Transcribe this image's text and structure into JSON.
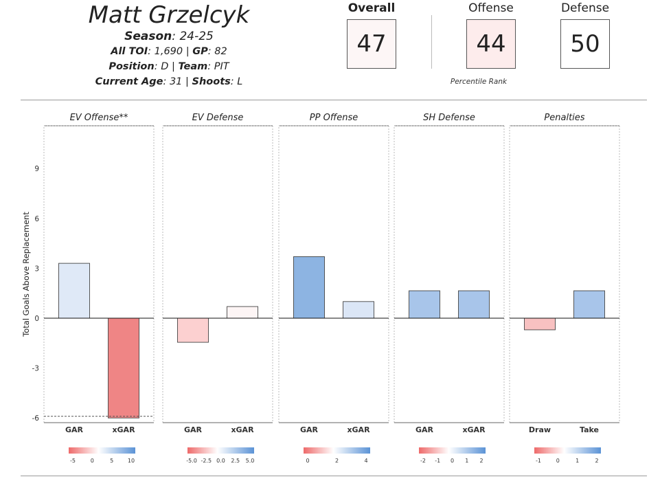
{
  "player": {
    "name": "Matt Grzelcyk",
    "season_label": "Season",
    "season": "24-25",
    "toi_label": "All TOI",
    "toi": "1,690",
    "gp_label": "GP",
    "gp": "82",
    "position_label": "Position",
    "position": "D",
    "team_label": "Team",
    "team": "PIT",
    "age_label": "Current Age",
    "age": "31",
    "shoots_label": "Shoots",
    "shoots": "L"
  },
  "ratings": {
    "overall_label": "Overall",
    "overall": "47",
    "offense_label": "Offense",
    "offense": "44",
    "defense_label": "Defense",
    "defense": "50",
    "percentile_label": "Percentile Rank",
    "colors": {
      "overall_box": "#fdf6f6",
      "offense_box": "#fdecec",
      "defense_box": "#ffffff"
    }
  },
  "chart_data": {
    "type": "bar",
    "ylabel": "Total Goals Above Replacement",
    "ylim": [
      -6.2,
      11.7
    ],
    "yticks": [
      -6,
      -3,
      0,
      3,
      6,
      9
    ],
    "grid": false,
    "panels": [
      {
        "title": "EV Offense**",
        "categories": [
          "GAR",
          "xGAR"
        ],
        "values": [
          3.3,
          -6.0
        ],
        "colors": [
          "#dfe9f7",
          "#ef8585"
        ],
        "colorbar_ticks": [
          "-5",
          "0",
          "5",
          "10"
        ],
        "floor_line": -5.9
      },
      {
        "title": "EV Defense",
        "categories": [
          "GAR",
          "xGAR"
        ],
        "values": [
          -1.45,
          0.7
        ],
        "colors": [
          "#fcd0d0",
          "#fdf5f5"
        ],
        "colorbar_ticks": [
          "-5.0",
          "-2.5",
          "0.0",
          "2.5",
          "5.0"
        ]
      },
      {
        "title": "PP Offense",
        "categories": [
          "GAR",
          "xGAR"
        ],
        "values": [
          3.7,
          1.0
        ],
        "colors": [
          "#8db4e2",
          "#dbe6f6"
        ],
        "colorbar_ticks": [
          "0",
          "2",
          "4"
        ]
      },
      {
        "title": "SH Defense",
        "categories": [
          "GAR",
          "xGAR"
        ],
        "values": [
          1.65,
          1.65
        ],
        "colors": [
          "#a8c5ea",
          "#a8c5ea"
        ],
        "colorbar_ticks": [
          "-2",
          "-1",
          "0",
          "1",
          "2"
        ]
      },
      {
        "title": "Penalties",
        "categories": [
          "Draw",
          "Take"
        ],
        "values": [
          -0.7,
          1.65
        ],
        "colors": [
          "#f8c1c1",
          "#a8c5ea"
        ],
        "colorbar_ticks": [
          "-1",
          "0",
          "1",
          "2"
        ]
      }
    ],
    "colorbar_colors": {
      "negative": "#ee6a6a",
      "neutral": "#ffffff",
      "positive": "#5b93d6"
    }
  }
}
